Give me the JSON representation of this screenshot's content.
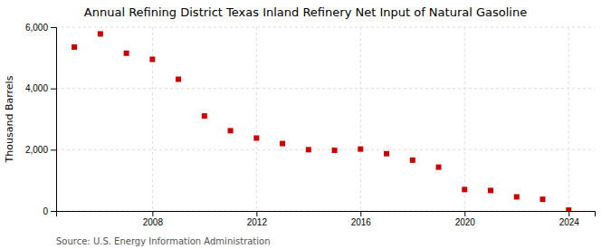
{
  "chart_data": {
    "type": "scatter",
    "title": "Annual Refining District Texas Inland Refinery Net Input of Natural Gasoline",
    "ylabel": "Thousand Barrels",
    "source": "Source: U.S. Energy Information Administration",
    "x": [
      2005,
      2006,
      2007,
      2008,
      2009,
      2010,
      2011,
      2012,
      2013,
      2014,
      2015,
      2016,
      2017,
      2018,
      2019,
      2020,
      2021,
      2022,
      2023,
      2024
    ],
    "values": [
      5350,
      5780,
      5150,
      4950,
      4300,
      3100,
      2620,
      2380,
      2200,
      2000,
      1980,
      2020,
      1870,
      1660,
      1430,
      700,
      670,
      460,
      380,
      30
    ],
    "color": "#cc0000",
    "marker": "square",
    "xlim": [
      2004.3,
      2025.0
    ],
    "xticks": [
      2008,
      2012,
      2016,
      2020,
      2024
    ],
    "ylim": [
      0,
      6000
    ],
    "yticks": [
      0,
      {
        "value": 2000,
        "label": "2,000"
      },
      {
        "value": 4000,
        "label": "4,000"
      },
      {
        "value": 6000,
        "label": "6,000"
      }
    ],
    "grid": true
  }
}
